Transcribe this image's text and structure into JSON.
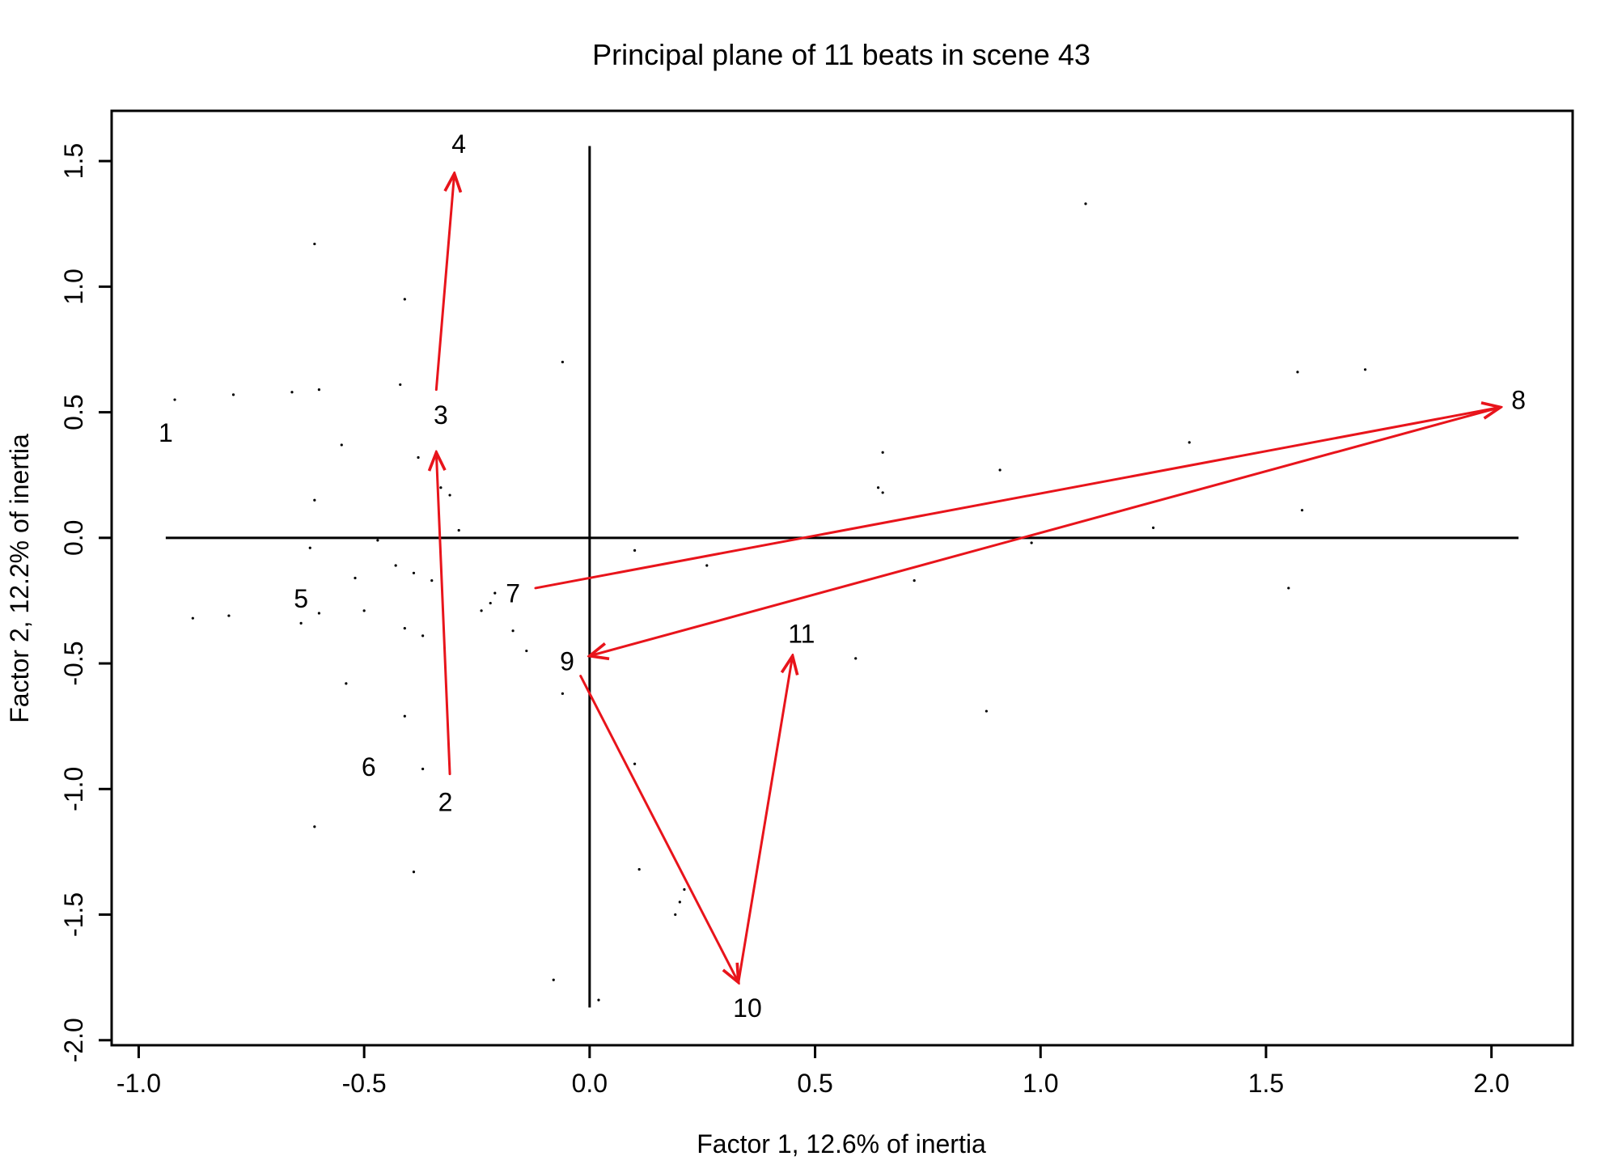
{
  "chart_data": {
    "type": "scatter",
    "title": "Principal plane of 11 beats in scene 43",
    "xlabel": "Factor 1, 12.6% of inertia",
    "ylabel": "Factor 2, 12.2% of inertia",
    "xlim": [
      -1.06,
      2.18
    ],
    "ylim": [
      -2.02,
      1.7
    ],
    "xticks": [
      -1.0,
      -0.5,
      0.0,
      0.5,
      1.0,
      1.5,
      2.0
    ],
    "xtick_labels": [
      "-1.0",
      "-0.5",
      "0.0",
      "0.5",
      "1.0",
      "1.5",
      "2.0"
    ],
    "yticks": [
      -2.0,
      -1.5,
      -1.0,
      -0.5,
      0.0,
      0.5,
      1.0,
      1.5
    ],
    "ytick_labels": [
      "-2.0",
      "-1.5",
      "-1.0",
      "-0.5",
      "0.0",
      "0.5",
      "1.0",
      "1.5"
    ],
    "reference_lines": {
      "horizontal": {
        "y": 0,
        "x_from": -0.94,
        "x_to": 2.06
      },
      "vertical": {
        "x": 0,
        "y_from": -1.87,
        "y_to": 1.56
      }
    },
    "beats": [
      {
        "label": "1",
        "x": -0.94,
        "y": 0.41
      },
      {
        "label": "2",
        "x": -0.32,
        "y": -1.06
      },
      {
        "label": "3",
        "x": -0.33,
        "y": 0.48
      },
      {
        "label": "4",
        "x": -0.29,
        "y": 1.56
      },
      {
        "label": "5",
        "x": -0.64,
        "y": -0.25
      },
      {
        "label": "6",
        "x": -0.49,
        "y": -0.92
      },
      {
        "label": "7",
        "x": -0.17,
        "y": -0.23
      },
      {
        "label": "8",
        "x": 2.06,
        "y": 0.54
      },
      {
        "label": "9",
        "x": -0.05,
        "y": -0.5
      },
      {
        "label": "10",
        "x": 0.35,
        "y": -1.88
      },
      {
        "label": "11",
        "x": 0.47,
        "y": -0.39
      }
    ],
    "arrows": [
      {
        "from": [
          -0.34,
          0.59
        ],
        "to": [
          -0.3,
          1.45
        ]
      },
      {
        "from": [
          -0.31,
          -0.94
        ],
        "to": [
          -0.34,
          0.34
        ]
      },
      {
        "from": [
          -0.12,
          -0.2
        ],
        "to": [
          2.02,
          0.52
        ]
      },
      {
        "from": [
          2.02,
          0.52
        ],
        "to": [
          0.0,
          -0.47
        ]
      },
      {
        "from": [
          -0.02,
          -0.55
        ],
        "to": [
          0.33,
          -1.77
        ]
      },
      {
        "from": [
          0.33,
          -1.77
        ],
        "to": [
          0.45,
          -0.47
        ]
      }
    ],
    "points": [
      [
        -0.61,
        1.17
      ],
      [
        -0.41,
        0.95
      ],
      [
        -0.06,
        0.7
      ],
      [
        -0.92,
        0.55
      ],
      [
        -0.79,
        0.57
      ],
      [
        -0.66,
        0.58
      ],
      [
        -0.6,
        0.59
      ],
      [
        -0.42,
        0.61
      ],
      [
        -0.55,
        0.37
      ],
      [
        -0.38,
        0.32
      ],
      [
        -0.61,
        0.15
      ],
      [
        -0.33,
        0.2
      ],
      [
        -0.31,
        0.17
      ],
      [
        -0.29,
        0.03
      ],
      [
        -0.47,
        -0.01
      ],
      [
        -0.62,
        -0.04
      ],
      [
        -0.43,
        -0.11
      ],
      [
        -0.52,
        -0.16
      ],
      [
        -0.39,
        -0.14
      ],
      [
        -0.35,
        -0.17
      ],
      [
        -0.21,
        -0.22
      ],
      [
        -0.22,
        -0.26
      ],
      [
        -0.24,
        -0.29
      ],
      [
        -0.6,
        -0.3
      ],
      [
        -0.5,
        -0.29
      ],
      [
        -0.88,
        -0.32
      ],
      [
        -0.8,
        -0.31
      ],
      [
        -0.64,
        -0.34
      ],
      [
        -0.41,
        -0.36
      ],
      [
        -0.37,
        -0.39
      ],
      [
        -0.17,
        -0.37
      ],
      [
        -0.14,
        -0.45
      ],
      [
        -0.54,
        -0.58
      ],
      [
        -0.06,
        -0.62
      ],
      [
        -0.41,
        -0.71
      ],
      [
        -0.37,
        -0.92
      ],
      [
        -0.61,
        -1.15
      ],
      [
        -0.39,
        -1.33
      ],
      [
        -0.08,
        -1.76
      ],
      [
        0.02,
        -1.84
      ],
      [
        0.1,
        -0.05
      ],
      [
        0.26,
        -0.11
      ],
      [
        0.1,
        -0.9
      ],
      [
        0.11,
        -1.32
      ],
      [
        0.21,
        -1.4
      ],
      [
        0.2,
        -1.45
      ],
      [
        0.19,
        -1.5
      ],
      [
        0.59,
        -0.48
      ],
      [
        0.72,
        -0.17
      ],
      [
        0.88,
        -0.69
      ],
      [
        0.64,
        0.2
      ],
      [
        0.65,
        0.18
      ],
      [
        0.65,
        0.34
      ],
      [
        0.91,
        0.27
      ],
      [
        0.98,
        -0.02
      ],
      [
        1.1,
        1.33
      ],
      [
        1.25,
        0.04
      ],
      [
        1.33,
        0.38
      ],
      [
        1.55,
        -0.2
      ],
      [
        1.57,
        0.66
      ],
      [
        1.58,
        0.11
      ],
      [
        1.72,
        0.67
      ]
    ]
  }
}
